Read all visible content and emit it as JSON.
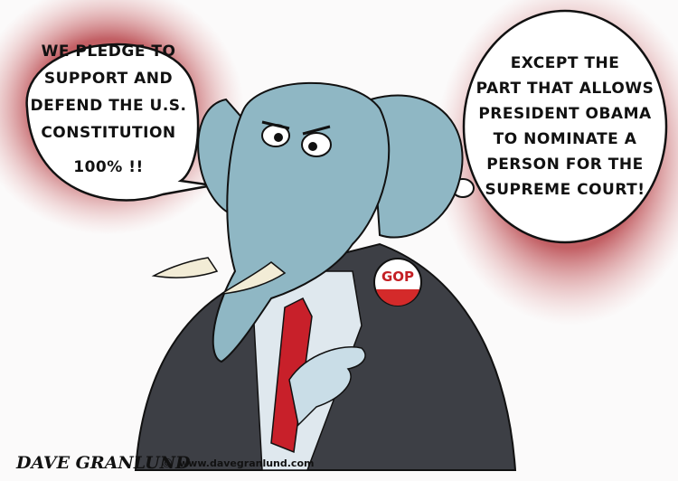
{
  "speech_bubbles": [
    {
      "lines": [
        "WE PLEDGE TO",
        "SUPPORT AND",
        "DEFEND THE U.S.",
        "CONSTITUTION",
        "100% !!"
      ]
    },
    {
      "lines": [
        "EXCEPT THE",
        "PART THAT ALLOWS",
        "PRESIDENT OBAMA",
        "TO NOMINATE A",
        "PERSON FOR THE",
        "SUPREME COURT!"
      ]
    }
  ],
  "button": {
    "label": "GOP"
  },
  "signature": {
    "artist": "DAVE GRANLUND",
    "copyright": "©",
    "website": "www.davegranlund.com"
  }
}
